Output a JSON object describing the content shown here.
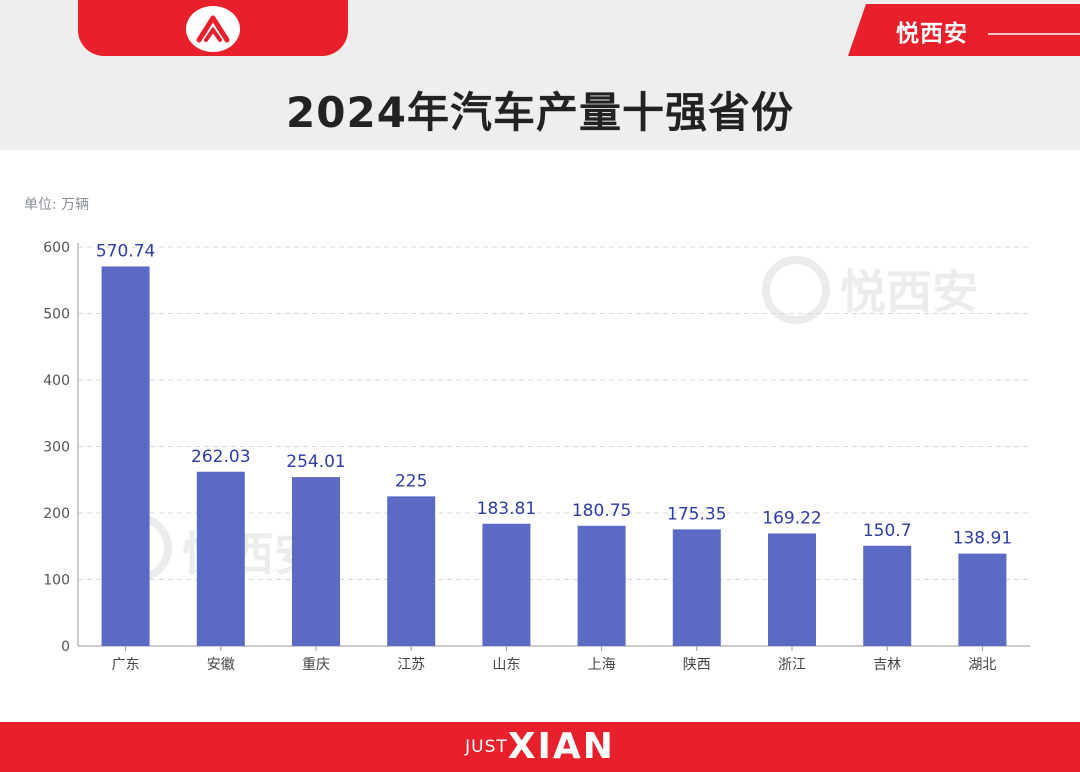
{
  "header": {
    "brand": "悦西安",
    "title": "2024年汽车产量十强省份"
  },
  "unit_label": "单位: 万辆",
  "watermark": "悦西安",
  "footer": {
    "just": "JUST",
    "xian": "XIAN"
  },
  "colors": {
    "bar": "#5b6ac4",
    "label": "#2e3da6",
    "accent": "#e8202c"
  },
  "chart_data": {
    "type": "bar",
    "title": "2024年汽车产量十强省份",
    "ylabel": "单位: 万辆",
    "xlabel": "",
    "categories": [
      "广东",
      "安徽",
      "重庆",
      "江苏",
      "山东",
      "上海",
      "陕西",
      "浙江",
      "吉林",
      "湖北"
    ],
    "values": [
      570.74,
      262.03,
      254.01,
      225,
      183.81,
      180.75,
      175.35,
      169.22,
      150.7,
      138.91
    ],
    "value_labels": [
      "570.74",
      "262.03",
      "254.01",
      "225",
      "183.81",
      "180.75",
      "175.35",
      "169.22",
      "150.7",
      "138.91"
    ],
    "ylim": [
      0,
      600
    ],
    "yticks": [
      0,
      100,
      200,
      300,
      400,
      500,
      600
    ],
    "grid": true,
    "gridstyle": "dashed",
    "legend": "none"
  }
}
